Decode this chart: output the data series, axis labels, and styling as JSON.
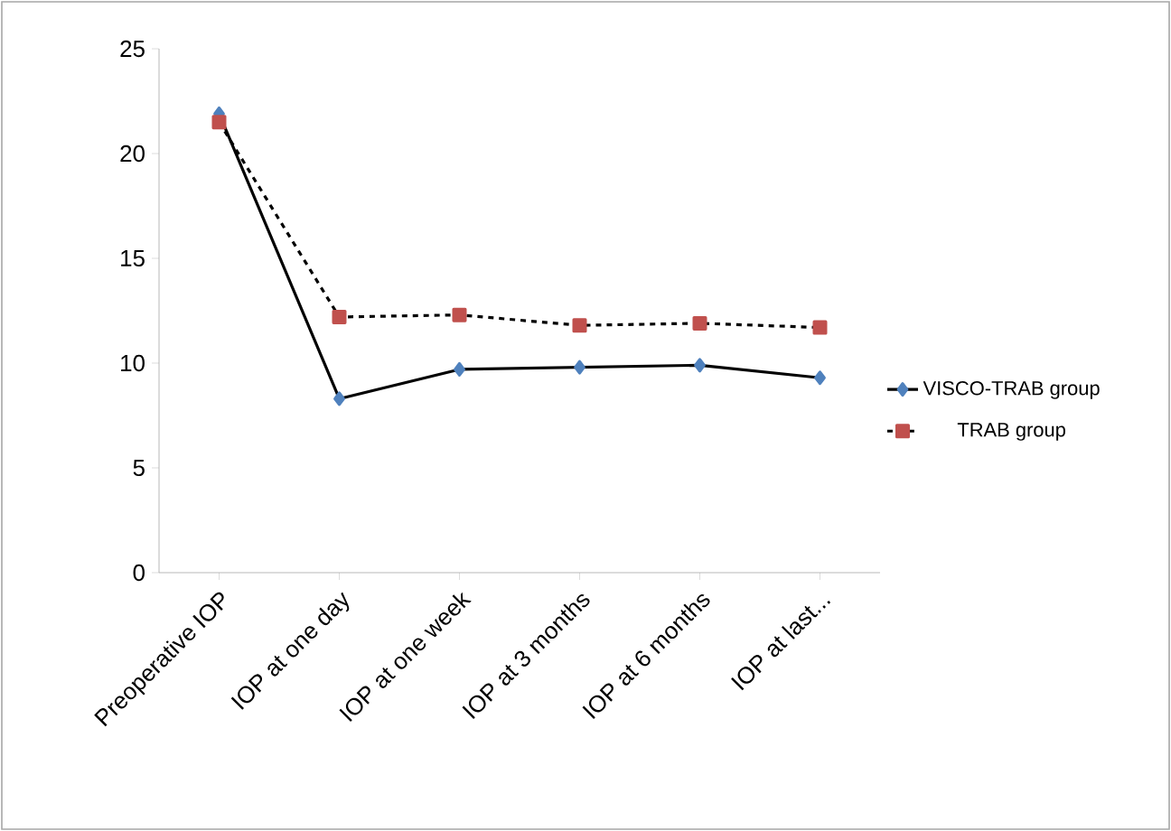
{
  "chart_data": {
    "type": "line",
    "categories": [
      "Preoperative IOP",
      "IOP at one day",
      "IOP at one week",
      "IOP at 3 months",
      "IOP at 6 months",
      "IOP at last..."
    ],
    "series": [
      {
        "name": "VISCO-TRAB group",
        "color": "#4f81bd",
        "values": [
          21.9,
          8.3,
          9.7,
          9.8,
          9.9,
          9.3
        ],
        "marker": "diamond",
        "line_style": "solid"
      },
      {
        "name": "TRAB group",
        "color": "#c0504d",
        "values": [
          21.5,
          12.2,
          12.3,
          11.8,
          11.9,
          11.7
        ],
        "marker": "square",
        "line_style": "dashed"
      }
    ],
    "ylim": [
      0,
      25
    ],
    "yticks": [
      0,
      5,
      10,
      15,
      20,
      25
    ],
    "grid": false,
    "legend": "right"
  }
}
